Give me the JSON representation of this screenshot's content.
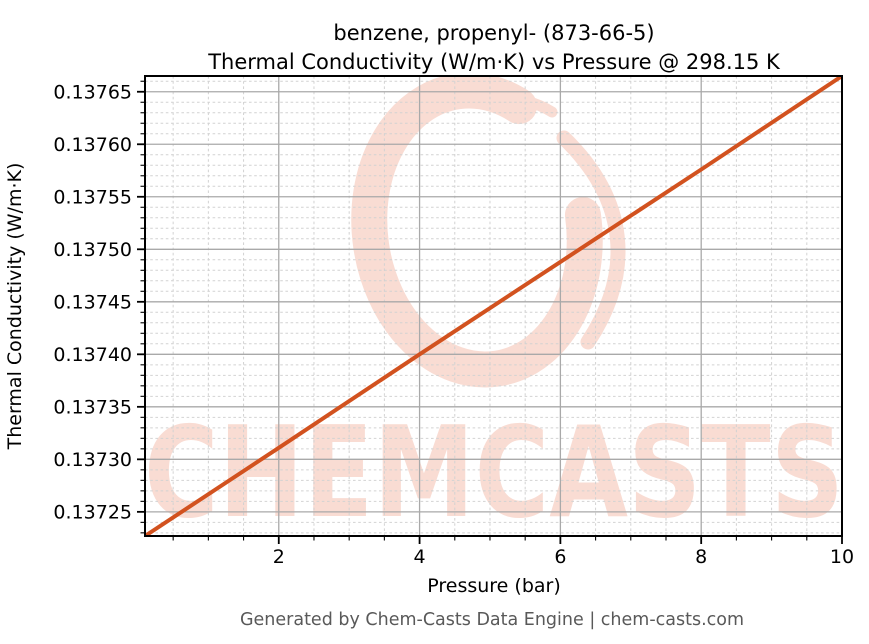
{
  "footer": {
    "text": "Generated by Chem-Casts Data Engine | chem-casts.com"
  },
  "watermark": {
    "text": "CHEMCASTS",
    "color": "#f9dcd3"
  },
  "chart_data": {
    "type": "line",
    "title": "benzene, propenyl- (873-66-5)",
    "subtitle": "Thermal Conductivity (W/m·K) vs Pressure @ 298.15 K",
    "xlabel": "Pressure (bar)",
    "ylabel": "Thermal Conductivity (W/m·K)",
    "xlim": [
      0.1,
      10
    ],
    "ylim": [
      0.137227,
      0.137665
    ],
    "grid": true,
    "legend": false,
    "line_color": "#d2521f",
    "x_major_ticks": [
      2,
      4,
      6,
      8,
      10
    ],
    "x_tick_labels": [
      "2",
      "4",
      "6",
      "8",
      "10"
    ],
    "x_minor_step": 0.5,
    "y_major_ticks": [
      0.13725,
      0.1373,
      0.13735,
      0.1374,
      0.13745,
      0.1375,
      0.13755,
      0.1376,
      0.13765
    ],
    "y_tick_labels": [
      "0.13725",
      "0.13730",
      "0.13735",
      "0.13740",
      "0.13745",
      "0.13750",
      "0.13755",
      "0.13760",
      "0.13765"
    ],
    "y_minor_step": 1e-05,
    "series": [
      {
        "name": "Thermal Conductivity (W/m·K)",
        "x": [
          0.1,
          2,
          4,
          6,
          8,
          10
        ],
        "y": [
          0.137227,
          0.137311,
          0.1374,
          0.137488,
          0.137576,
          0.137665
        ]
      }
    ]
  }
}
